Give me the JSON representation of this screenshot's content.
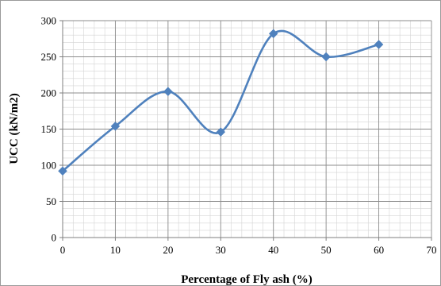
{
  "chart_data": {
    "type": "line",
    "title": "",
    "xlabel": "Percentage of Fly ash (%)",
    "ylabel": "UCC (kN/m2)",
    "xlim": [
      0,
      70
    ],
    "ylim": [
      0,
      300
    ],
    "x_ticks": [
      0,
      10,
      20,
      30,
      40,
      50,
      60,
      70
    ],
    "y_ticks": [
      0,
      50,
      100,
      150,
      200,
      250,
      300
    ],
    "grid": true,
    "smooth": true,
    "marker": "diamond",
    "color": "#4f81bd",
    "series": [
      {
        "x": [
          0,
          10,
          20,
          30,
          40,
          50,
          60
        ],
        "values": [
          92,
          154,
          202,
          146,
          282,
          250,
          267
        ]
      }
    ]
  }
}
